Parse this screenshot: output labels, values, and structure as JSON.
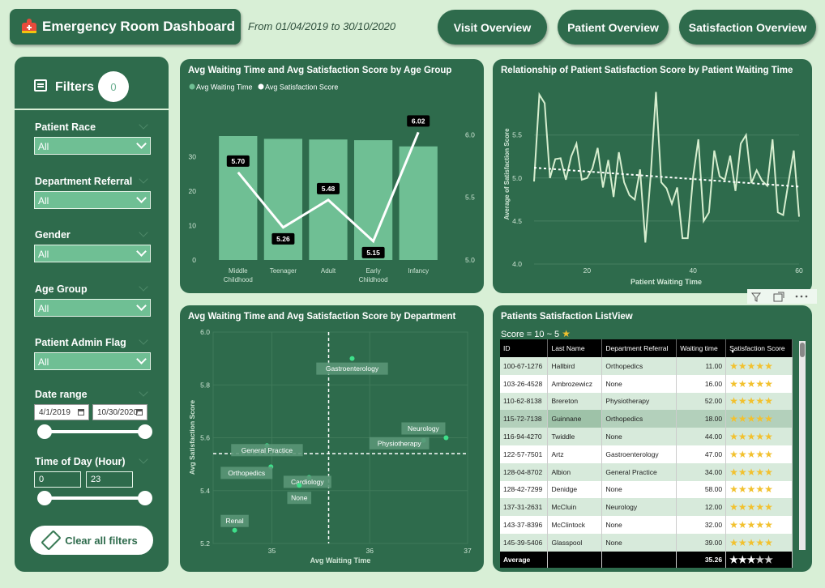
{
  "header": {
    "title": "Emergency Room Dashboard",
    "date_range": "From 01/04/2019 to 30/10/2020",
    "nav": [
      "Visit Overview",
      "Patient Overview",
      "Satisfaction Overview"
    ]
  },
  "colors": {
    "dark_green": "#2e6b4c",
    "light_bg": "#d8efd6",
    "bar": "#6fbf94",
    "accent_star": "#f2c12e"
  },
  "filters": {
    "title": "Filters",
    "count": "0",
    "items": [
      {
        "label": "Patient Race",
        "value": "All"
      },
      {
        "label": "Department Referral",
        "value": "All"
      },
      {
        "label": "Gender",
        "value": "All"
      },
      {
        "label": "Age Group",
        "value": "All"
      },
      {
        "label": "Patient Admin Flag",
        "value": "All"
      }
    ],
    "date_range": {
      "label": "Date range",
      "start": "4/1/2019",
      "end": "10/30/2020"
    },
    "time_of_day": {
      "label": "Time of Day (Hour)",
      "min": "0",
      "max": "23"
    },
    "clear_label": "Clear all filters"
  },
  "chart_data": [
    {
      "type": "bar",
      "title": "Avg Waiting Time and Avg Satisfaction Score by Age Group",
      "legend": [
        "Avg Waiting Time",
        "Avg Satisfaction Score"
      ],
      "categories": [
        "Middle\nChildhood",
        "Teenager",
        "Adult",
        "Early\nChildhood",
        "Infancy"
      ],
      "series": [
        {
          "name": "Avg Waiting Time",
          "type": "bar",
          "values": [
            36.0,
            35.2,
            35.0,
            34.8,
            33.0
          ]
        },
        {
          "name": "Avg Satisfaction Score",
          "type": "line",
          "values": [
            5.7,
            5.26,
            5.48,
            5.15,
            6.02
          ]
        }
      ],
      "y_left_ticks": [
        "0",
        "10",
        "20",
        "30"
      ],
      "y_left_lim": [
        0,
        40
      ],
      "y_right_ticks": [
        "5.0",
        "5.5",
        "6.0"
      ],
      "y_right_lim": [
        5.0,
        6.1
      ],
      "data_labels": [
        "5.70",
        "5.26",
        "5.48",
        "5.15",
        "6.02"
      ],
      "legend_position": "top-left"
    },
    {
      "type": "line",
      "title": "Relationship of Patient Satisfaction Score by Patient Waiting Time",
      "xlabel": "Patient Waiting Time",
      "ylabel": "Average of Satisfaction Score",
      "x_ticks": [
        "20",
        "40",
        "60"
      ],
      "y_ticks": [
        "4.0",
        "4.5",
        "5.0",
        "5.5"
      ],
      "xlim": [
        10,
        60
      ],
      "ylim": [
        4.0,
        6.1
      ],
      "x": [
        10,
        11,
        12,
        13,
        14,
        15,
        16,
        17,
        18,
        19,
        20,
        21,
        22,
        23,
        24,
        25,
        26,
        27,
        28,
        29,
        30,
        31,
        32,
        33,
        34,
        35,
        36,
        37,
        38,
        39,
        40,
        41,
        42,
        43,
        44,
        45,
        46,
        47,
        48,
        49,
        50,
        51,
        52,
        53,
        54,
        55,
        56,
        57,
        58,
        59,
        60
      ],
      "values": [
        4.96,
        5.97,
        5.87,
        5.0,
        5.22,
        5.23,
        4.98,
        5.25,
        5.4,
        4.98,
        5.0,
        5.11,
        5.35,
        4.89,
        5.21,
        4.78,
        5.3,
        4.95,
        4.8,
        4.75,
        5.1,
        4.25,
        5.02,
        6.0,
        4.95,
        4.88,
        4.7,
        4.89,
        4.3,
        4.3,
        5.01,
        5.45,
        4.5,
        4.6,
        5.32,
        5.02,
        4.98,
        5.26,
        4.85,
        5.4,
        5.5,
        4.94,
        5.09,
        4.97,
        4.91,
        5.45,
        4.6,
        4.57,
        4.95,
        5.32,
        4.55
      ],
      "trend": [
        5.12,
        4.9
      ],
      "grid": true
    },
    {
      "type": "scatter",
      "title": "Avg Waiting Time and Avg Satisfaction Score by Department",
      "xlabel": "Avg Waiting Time",
      "ylabel": "Avg Satisfaction Score",
      "x_ticks": [
        "35",
        "36",
        "37"
      ],
      "y_ticks": [
        "5.2",
        "5.4",
        "5.6",
        "5.8",
        "6.0"
      ],
      "xlim": [
        34.4,
        37.0
      ],
      "ylim": [
        5.2,
        6.0
      ],
      "ref_x": 35.58,
      "ref_y": 5.54,
      "points": [
        {
          "label": "Gastroenterology",
          "x": 35.82,
          "y": 5.9
        },
        {
          "label": "Neurology",
          "x": 36.78,
          "y": 5.6
        },
        {
          "label": "Physiotherapy",
          "x": 36.55,
          "y": 5.59
        },
        {
          "label": "General Practice",
          "x": 34.95,
          "y": 5.57
        },
        {
          "label": "Orthopedics",
          "x": 34.99,
          "y": 5.49
        },
        {
          "label": "Cardiology",
          "x": 35.38,
          "y": 5.45
        },
        {
          "label": "None",
          "x": 35.28,
          "y": 5.42
        },
        {
          "label": "Renal",
          "x": 34.62,
          "y": 5.25
        }
      ],
      "grid": true
    }
  ],
  "listview": {
    "title": "Patients Satisfaction ListView",
    "score_filter": "Score = 10 ~ 5",
    "columns": [
      "ID",
      "Last Name",
      "Department Referral",
      "Waiting time",
      "Satisfaction Score"
    ],
    "rows": [
      {
        "id": "100-67-1276",
        "last": "Hallbird",
        "dept": "Orthopedics",
        "wait": "11.00",
        "stars": 5
      },
      {
        "id": "103-26-4528",
        "last": "Ambrozewicz",
        "dept": "None",
        "wait": "16.00",
        "stars": 5
      },
      {
        "id": "110-62-8138",
        "last": "Brereton",
        "dept": "Physiotherapy",
        "wait": "52.00",
        "stars": 5
      },
      {
        "id": "115-72-7138",
        "last": "Guinnane",
        "dept": "Orthopedics",
        "wait": "18.00",
        "stars": 5
      },
      {
        "id": "116-94-4270",
        "last": "Twiddle",
        "dept": "None",
        "wait": "44.00",
        "stars": 5
      },
      {
        "id": "122-57-7501",
        "last": "Artz",
        "dept": "Gastroenterology",
        "wait": "47.00",
        "stars": 5
      },
      {
        "id": "128-04-8702",
        "last": "Albion",
        "dept": "General Practice",
        "wait": "34.00",
        "stars": 5
      },
      {
        "id": "128-42-7299",
        "last": "Denidge",
        "dept": "None",
        "wait": "58.00",
        "stars": 5
      },
      {
        "id": "137-31-2631",
        "last": "McCluin",
        "dept": "Neurology",
        "wait": "12.00",
        "stars": 5
      },
      {
        "id": "143-37-8396",
        "last": "McClintock",
        "dept": "None",
        "wait": "32.00",
        "stars": 5
      },
      {
        "id": "145-39-5406",
        "last": "Glasspool",
        "dept": "None",
        "wait": "39.00",
        "stars": 5
      }
    ],
    "average": {
      "label": "Average",
      "wait": "35.26",
      "stars": 3
    }
  }
}
